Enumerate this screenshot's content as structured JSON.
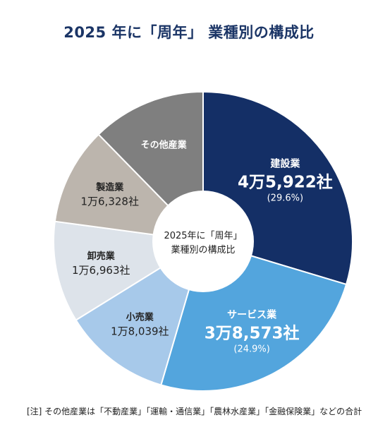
{
  "title": "2025 年に「周年」 業種別の構成比",
  "colors": {
    "title": "#1b3566",
    "construction": "#142f66",
    "service": "#53a5dd",
    "retail": "#a7c9ea",
    "wholesale": "#dde3ea",
    "manufacturing": "#bcb5ad",
    "other": "#7f7f7f",
    "center": "#ffffff"
  },
  "chart_data": {
    "type": "pie",
    "donut": true,
    "center_label": [
      "2025年に「周年」",
      "業種別の構成比"
    ],
    "slices": [
      {
        "name": "建設業",
        "count_label": "4万5,922社",
        "value": 45922,
        "percent_label": "(29.6%)",
        "percent": 29.6,
        "color_key": "construction",
        "text_color": "#ffffff",
        "big": true
      },
      {
        "name": "サービス業",
        "count_label": "3万8,573社",
        "value": 38573,
        "percent_label": "(24.9%)",
        "percent": 24.9,
        "color_key": "service",
        "text_color": "#ffffff",
        "big": true
      },
      {
        "name": "小売業",
        "count_label": "1万8,039社",
        "value": 18039,
        "percent_label": "",
        "color_key": "retail",
        "text_color": "#222222",
        "big": false
      },
      {
        "name": "卸売業",
        "count_label": "1万6,963社",
        "value": 16963,
        "percent_label": "",
        "color_key": "wholesale",
        "text_color": "#222222",
        "big": false
      },
      {
        "name": "製造業",
        "count_label": "1万6,328社",
        "value": 16328,
        "percent_label": "",
        "color_key": "manufacturing",
        "text_color": "#222222",
        "big": false
      },
      {
        "name": "その他産業",
        "count_label": "",
        "value": 19100,
        "percent_label": "",
        "color_key": "other",
        "text_color": "#ffffff",
        "big": false
      }
    ]
  },
  "note": "[注] その他産業は「不動産業」「運輸・通信業」「農林水産業」「金融保険業」などの合計"
}
